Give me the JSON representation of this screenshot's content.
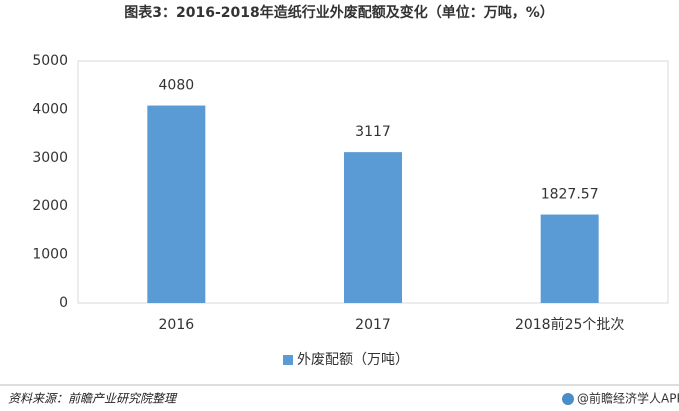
{
  "chart_data": {
    "type": "bar",
    "title": "图表3：2016-2018年造纸行业外废配额及变化（单位：万吨，%）",
    "categories": [
      "2016",
      "2017",
      "2018前25个批次"
    ],
    "series": [
      {
        "name": "外废配额（万吨）",
        "color": "#5b9bd5",
        "values": [
          4080,
          3117,
          1827.57
        ]
      }
    ],
    "ylim": [
      0,
      5000
    ],
    "yticks": [
      0,
      1000,
      2000,
      3000,
      4000,
      5000
    ],
    "grid": false,
    "legend": "bottom"
  },
  "footer": {
    "source": "资料来源：前瞻产业研究院整理",
    "brand": "@前瞻经济学人APP"
  }
}
